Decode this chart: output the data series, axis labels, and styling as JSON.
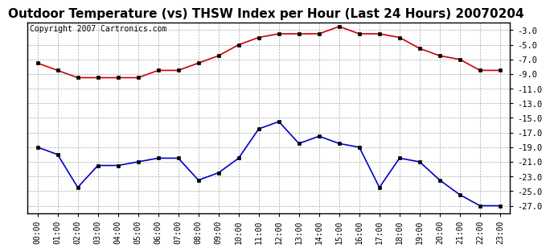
{
  "title": "Outdoor Temperature (vs) THSW Index per Hour (Last 24 Hours) 20070204",
  "copyright": "Copyright 2007 Cartronics.com",
  "hours": [
    "00:00",
    "01:00",
    "02:00",
    "03:00",
    "04:00",
    "05:00",
    "06:00",
    "07:00",
    "08:00",
    "09:00",
    "10:00",
    "11:00",
    "12:00",
    "13:00",
    "14:00",
    "15:00",
    "16:00",
    "17:00",
    "18:00",
    "19:00",
    "20:00",
    "21:00",
    "22:00",
    "23:00"
  ],
  "temp": [
    -7.5,
    -8.5,
    -9.5,
    -9.5,
    -9.5,
    -9.5,
    -8.5,
    -8.5,
    -7.5,
    -6.5,
    -5.0,
    -4.0,
    -3.5,
    -3.5,
    -3.5,
    -2.5,
    -3.5,
    -3.5,
    -4.0,
    -5.5,
    -6.5,
    -7.0,
    -8.5,
    -8.5
  ],
  "thsw": [
    -19.0,
    -20.0,
    -24.5,
    -21.5,
    -21.5,
    -21.0,
    -20.5,
    -20.5,
    -23.5,
    -22.5,
    -20.5,
    -16.5,
    -15.5,
    -18.5,
    -17.5,
    -18.5,
    -19.0,
    -24.5,
    -20.5,
    -21.0,
    -23.5,
    -25.5,
    -27.0,
    -27.0
  ],
  "temp_color": "#cc0000",
  "thsw_color": "#0000cc",
  "bg_color": "#ffffff",
  "plot_bg": "#ffffff",
  "grid_color": "#aaaaaa",
  "title_fontsize": 11,
  "copyright_fontsize": 7,
  "ylim": [
    -28.0,
    -2.0
  ],
  "yticks": [
    -27.0,
    -25.0,
    -23.0,
    -21.0,
    -19.0,
    -17.0,
    -15.0,
    -13.0,
    -11.0,
    -9.0,
    -7.0,
    -5.0,
    -3.0
  ],
  "marker": "s",
  "marker_size": 3,
  "line_width": 1.2
}
